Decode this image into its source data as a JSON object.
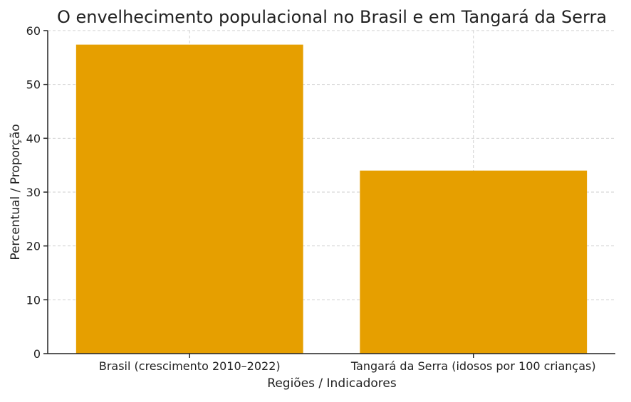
{
  "chart_data": {
    "type": "bar",
    "title": "O envelhecimento populacional no Brasil e em Tangará da Serra",
    "xlabel": "Regiões / Indicadores",
    "ylabel": "Percentual / Proporção",
    "categories": [
      "Brasil (crescimento 2010–2022)",
      "Tangará da Serra (idosos por 100 crianças)"
    ],
    "values": [
      57.4,
      34
    ],
    "ylim": [
      0,
      60
    ],
    "yticks": [
      0,
      10,
      20,
      30,
      40,
      50,
      60
    ],
    "grid": true,
    "bar_color": "#e69f00"
  }
}
